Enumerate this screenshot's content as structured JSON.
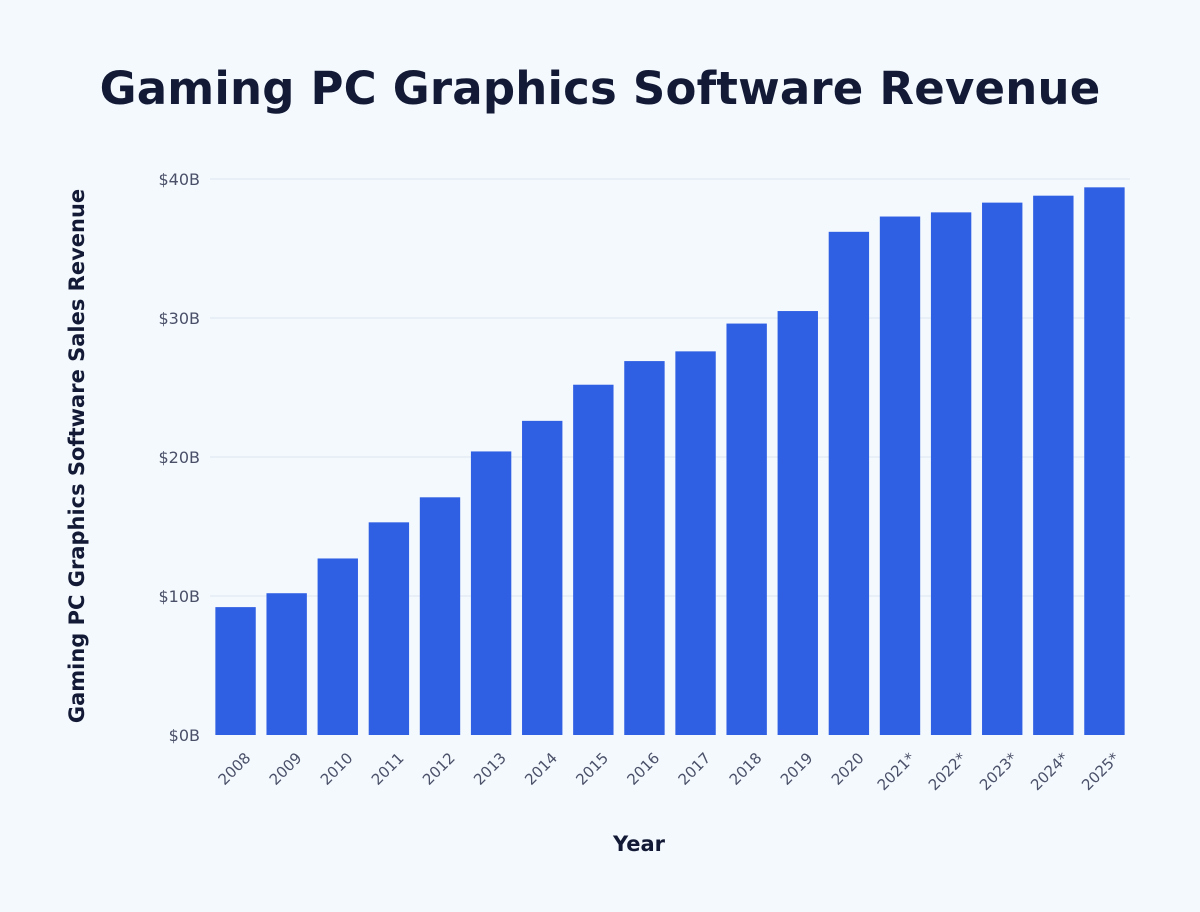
{
  "chart_data": {
    "type": "bar",
    "title": "Gaming PC Graphics Software Revenue",
    "xlabel": "Year",
    "ylabel": "Gaming PC Graphics Software Sales Revenue",
    "categories": [
      "2008",
      "2009",
      "2010",
      "2011",
      "2012",
      "2013",
      "2014",
      "2015",
      "2016",
      "2017",
      "2018",
      "2019",
      "2020",
      "2021*",
      "2022*",
      "2023*",
      "2024*",
      "2025*"
    ],
    "series": [
      {
        "values": [
          9.2,
          10.2,
          12.7,
          15.3,
          17.1,
          20.4,
          22.6,
          25.2,
          26.9,
          27.6,
          29.6,
          30.5,
          36.2,
          37.3,
          37.6,
          38.3,
          38.8,
          39.4
        ]
      }
    ],
    "ylim": [
      0,
      40
    ],
    "yticks": [
      {
        "value": 0,
        "label": "$0B"
      },
      {
        "value": 10,
        "label": "$10B"
      },
      {
        "value": 20,
        "label": "$20B"
      },
      {
        "value": 30,
        "label": "$30B"
      },
      {
        "value": 40,
        "label": "$40B"
      }
    ],
    "grid": true,
    "legend": "none",
    "bar_color": "#2f5fe3"
  }
}
